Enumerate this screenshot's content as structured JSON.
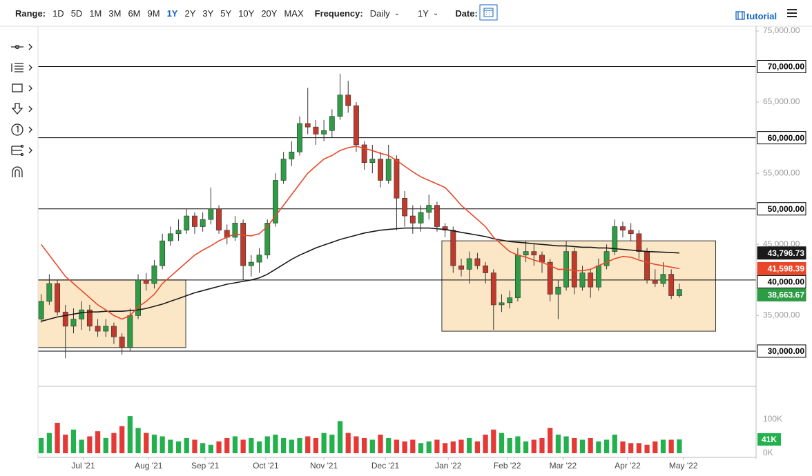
{
  "toolbar": {
    "range_label": "Range:",
    "ranges": [
      "1D",
      "5D",
      "1M",
      "3M",
      "6M",
      "9M",
      "1Y",
      "2Y",
      "3Y",
      "5Y",
      "10Y",
      "20Y",
      "MAX"
    ],
    "active_range_index": 6,
    "frequency_label": "Frequency:",
    "frequency": "Daily",
    "period": "1Y",
    "date_label": "Date:",
    "tutorial": "tutorial"
  },
  "chart_data": {
    "type": "candlestick",
    "open": [
      34500,
      37000,
      39500,
      35500,
      33500,
      34500,
      35800,
      33500,
      32800,
      33500,
      32000,
      30500,
      35000,
      40000,
      39500,
      42000,
      45500,
      46500,
      47000,
      49000,
      47500,
      48500,
      50000,
      47000,
      46000,
      48000,
      42000,
      42500,
      43500,
      48000,
      54000,
      57000,
      58000,
      62000,
      61500,
      60500,
      61000,
      63000,
      66000,
      64500,
      59000,
      56500,
      57000,
      54000,
      57000,
      51500,
      49000,
      48000,
      49500,
      50500,
      47500,
      47000,
      42000,
      41500,
      43000,
      42000,
      41000,
      36500,
      36800,
      37500,
      43500,
      44000,
      43500,
      42500,
      38000,
      39000,
      44000,
      39000,
      41000,
      39000,
      42000,
      44000,
      47500,
      47000,
      46500,
      44000,
      40000,
      39500,
      40800,
      37800
    ],
    "high": [
      38000,
      40800,
      40000,
      36500,
      36000,
      37000,
      36500,
      34500,
      34500,
      34000,
      32500,
      36000,
      40800,
      41000,
      42800,
      46500,
      47500,
      48500,
      50000,
      49500,
      49500,
      53000,
      50500,
      47800,
      49000,
      48500,
      43500,
      44500,
      48500,
      55000,
      58000,
      59500,
      63000,
      67000,
      62500,
      62500,
      64000,
      69000,
      68000,
      65000,
      59500,
      59000,
      58000,
      59000,
      57500,
      52500,
      50500,
      50500,
      52000,
      51000,
      48000,
      47500,
      43000,
      44000,
      43800,
      42500,
      41500,
      38000,
      38500,
      44500,
      45500,
      45000,
      44000,
      43000,
      40000,
      45500,
      44500,
      42000,
      41500,
      43000,
      45000,
      48500,
      48200,
      48000,
      47000,
      44500,
      41500,
      42500,
      41500,
      39500
    ],
    "low": [
      34000,
      36500,
      35000,
      29000,
      32500,
      33000,
      32800,
      32000,
      32000,
      31000,
      29500,
      30000,
      34500,
      38500,
      38800,
      41500,
      44800,
      45500,
      46500,
      46500,
      46800,
      47800,
      46500,
      45000,
      45500,
      40000,
      40500,
      41000,
      43000,
      47500,
      53500,
      56000,
      57500,
      60500,
      59000,
      59500,
      60000,
      62500,
      63500,
      58000,
      55500,
      55000,
      53000,
      53500,
      47000,
      47500,
      46500,
      46800,
      48500,
      46800,
      46000,
      41000,
      40500,
      39500,
      41500,
      39500,
      33000,
      35500,
      36000,
      37000,
      42500,
      42000,
      41000,
      37000,
      34500,
      38500,
      38000,
      38500,
      37500,
      38500,
      41500,
      43500,
      46000,
      45500,
      43000,
      39500,
      39000,
      39000,
      37300,
      37500
    ],
    "close": [
      37000,
      39500,
      35500,
      33500,
      34500,
      35800,
      33500,
      32800,
      33500,
      32000,
      30500,
      35000,
      40000,
      39500,
      42000,
      45500,
      46500,
      47000,
      49000,
      47500,
      48500,
      50000,
      47000,
      46000,
      48000,
      42000,
      42500,
      43500,
      48000,
      54000,
      57000,
      58000,
      62000,
      61500,
      60500,
      61000,
      63000,
      66000,
      64500,
      59000,
      56500,
      57000,
      54000,
      57000,
      51500,
      49000,
      48000,
      49500,
      50500,
      47500,
      47000,
      42000,
      41500,
      43000,
      42000,
      41000,
      36500,
      36800,
      37500,
      43500,
      44000,
      43500,
      42500,
      38000,
      39000,
      44000,
      39000,
      41000,
      39000,
      42000,
      44000,
      47500,
      47000,
      46500,
      44000,
      40000,
      39500,
      40800,
      37800,
      38663.67
    ],
    "close_label": "38,663.67",
    "up_color": "#2e9b45",
    "down_color": "#c0392b",
    "xlim": [
      -0.4,
      88.5
    ],
    "xticks": [
      {
        "value": 5.2,
        "label": "Jul '21"
      },
      {
        "value": 13.3,
        "label": "Aug '21"
      },
      {
        "value": 20.3,
        "label": "Sep '21"
      },
      {
        "value": 27.8,
        "label": "Oct '21"
      },
      {
        "value": 35.0,
        "label": "Nov '21"
      },
      {
        "value": 42.6,
        "label": "Dec '21"
      },
      {
        "value": 50.4,
        "label": "Jan '22"
      },
      {
        "value": 57.7,
        "label": "Feb '22"
      },
      {
        "value": 64.6,
        "label": "Mar '22"
      },
      {
        "value": 72.6,
        "label": "Apr '22"
      },
      {
        "value": 79.5,
        "label": "May '22"
      }
    ],
    "ylim": [
      25050,
      75480
    ],
    "yticks": [
      {
        "value": 35000,
        "label": "35,000.00"
      },
      {
        "value": 45000,
        "label": "45,000.00"
      },
      {
        "value": 55000,
        "label": "55,000.00"
      },
      {
        "value": 65000,
        "label": "65,000.00"
      },
      {
        "value": 75000,
        "label": "75,000.00"
      }
    ],
    "hlines": [
      {
        "value": 70000,
        "label": "70,000.00"
      },
      {
        "value": 60000,
        "label": "60,000.00"
      },
      {
        "value": 50000,
        "label": "50,000.00"
      },
      {
        "value": 40000,
        "label": "40,000.00"
      },
      {
        "value": 30000,
        "label": "30,000.00"
      }
    ],
    "hline_color": "#000000",
    "boxes": [
      {
        "x": [
          -0.4,
          17.9
        ],
        "y": [
          30500,
          40000
        ]
      },
      {
        "x": [
          49.6,
          83.5
        ],
        "y": [
          32800,
          45500
        ]
      }
    ],
    "box_color": "#fbe7c6",
    "ma": [
      {
        "color": "#1a1a1a",
        "last_label": "43,796.73",
        "values": [
          34200,
          34500,
          34800,
          35000,
          35200,
          35400,
          35500,
          35500,
          35600,
          35600,
          35600,
          35700,
          35800,
          36000,
          36300,
          36600,
          37000,
          37400,
          37800,
          38200,
          38500,
          38800,
          39100,
          39400,
          39600,
          39800,
          40000,
          40300,
          40800,
          41500,
          42200,
          42900,
          43500,
          44000,
          44500,
          44900,
          45300,
          45700,
          46000,
          46300,
          46600,
          46800,
          47000,
          47100,
          47200,
          47300,
          47300,
          47300,
          47300,
          47200,
          47100,
          46900,
          46700,
          46500,
          46300,
          46100,
          45800,
          45600,
          45400,
          45300,
          45200,
          45100,
          45000,
          44900,
          44800,
          44800,
          44700,
          44600,
          44600,
          44500,
          44500,
          44400,
          44300,
          44200,
          44100,
          44000,
          43950,
          43900,
          43850,
          43796.73
        ]
      },
      {
        "color": "#e8472a",
        "last_label": "41,598.39",
        "values": [
          45000,
          43500,
          42000,
          40500,
          39500,
          38500,
          37500,
          36500,
          35800,
          35000,
          34500,
          35000,
          36200,
          37000,
          38000,
          39500,
          40500,
          41500,
          42500,
          43500,
          44200,
          44800,
          45500,
          46000,
          46500,
          46300,
          46200,
          46500,
          47500,
          49000,
          50500,
          52000,
          53500,
          55000,
          56000,
          57000,
          57500,
          58200,
          58600,
          58800,
          58500,
          58200,
          57800,
          57500,
          56800,
          56000,
          55200,
          54500,
          54000,
          53500,
          53000,
          51800,
          50500,
          49500,
          48500,
          47500,
          46000,
          45000,
          44000,
          43500,
          43200,
          42800,
          42500,
          42000,
          41500,
          41500,
          41300,
          41300,
          41500,
          42000,
          42500,
          43000,
          43300,
          43200,
          42800,
          42500,
          42200,
          42000,
          41800,
          41598.39
        ]
      }
    ],
    "volume": {
      "up_color": "#22b14c",
      "down_color": "#e53935",
      "ylim": [
        0,
        198000
      ],
      "yticks": [
        {
          "value": 100000,
          "label": "100K"
        },
        {
          "value": 0,
          "label": "0K"
        }
      ],
      "last_label": "41K",
      "values": [
        45000,
        60000,
        90000,
        55000,
        70000,
        40000,
        50000,
        65000,
        45000,
        60000,
        80000,
        110000,
        75000,
        60000,
        55000,
        50000,
        40000,
        35000,
        45000,
        40000,
        30000,
        25000,
        35000,
        45000,
        50000,
        40000,
        45000,
        35000,
        50000,
        55000,
        45000,
        40000,
        45000,
        50000,
        45000,
        60000,
        55000,
        95000,
        60000,
        50000,
        45000,
        40000,
        55000,
        45000,
        40000,
        35000,
        40000,
        30000,
        35000,
        40000,
        30000,
        35000,
        40000,
        45000,
        35000,
        55000,
        70000,
        60000,
        45000,
        50000,
        35000,
        40000,
        45000,
        75000,
        55000,
        50000,
        45000,
        40000,
        45000,
        35000,
        40000,
        55000,
        35000,
        30000,
        30000,
        25000,
        35000,
        40000,
        40000,
        41000
      ]
    }
  }
}
